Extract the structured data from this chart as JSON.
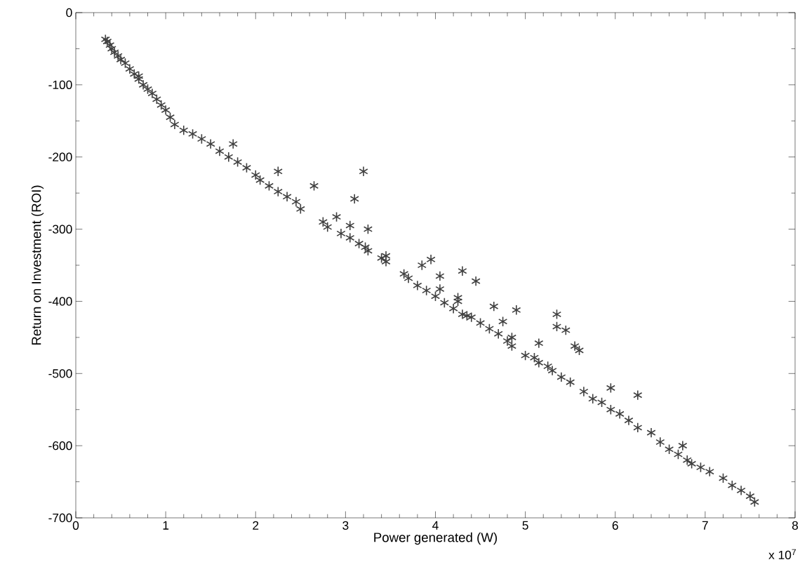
{
  "chart_data": {
    "type": "scatter",
    "xlabel": "Power generated (W)",
    "ylabel": "Return on Investment (ROI)",
    "annotations": [
      "x 10$^{7}$"
    ],
    "xlim": [
      0,
      8
    ],
    "xticks": [
      0,
      1,
      2,
      3,
      4,
      5,
      6,
      7,
      8
    ],
    "ylim": [
      -700,
      0
    ],
    "yticks": [
      -700,
      -600,
      -500,
      -400,
      -300,
      -200,
      -100,
      0
    ],
    "grid": false,
    "marker": "cross",
    "series": [
      {
        "color": "#404040",
        "x": [
          0.33,
          0.35,
          0.38,
          0.4,
          0.43,
          0.47,
          0.5,
          0.55,
          0.6,
          0.65,
          0.7,
          0.75,
          0.8,
          0.85,
          0.9,
          0.95,
          1.0,
          1.05,
          1.1,
          1.2,
          1.3,
          1.4,
          1.5,
          1.6,
          1.7,
          1.8,
          1.9,
          2.0,
          2.05,
          2.15,
          2.25,
          2.35,
          2.45,
          2.5,
          2.75,
          2.8,
          2.95,
          3.05,
          3.15,
          3.25,
          3.4,
          3.45,
          3.65,
          3.7,
          3.8,
          3.9,
          4.0,
          4.1,
          4.2,
          4.3,
          4.4,
          4.5,
          4.6,
          4.7,
          4.8,
          5.0,
          5.1,
          5.15,
          5.25,
          5.3,
          5.4,
          5.5,
          5.65,
          5.75,
          5.85,
          5.95,
          6.05,
          6.15,
          6.25,
          6.4,
          6.5,
          6.6,
          6.7,
          6.8,
          6.85,
          6.95,
          7.05,
          7.2,
          7.3,
          7.4,
          7.5,
          7.55,
          0.7,
          1.75,
          2.25,
          2.65,
          2.9,
          3.05,
          3.1,
          3.2,
          3.25,
          3.22,
          3.45,
          3.85,
          3.95,
          4.05,
          4.05,
          4.25,
          4.3,
          4.45,
          4.65,
          4.75,
          4.9,
          4.85,
          4.85,
          5.15,
          5.35,
          5.35,
          5.45,
          5.55,
          5.6,
          5.95,
          6.25,
          6.75,
          4.25,
          4.35
        ],
        "values": [
          -37,
          -40,
          -45,
          -50,
          -55,
          -60,
          -65,
          -70,
          -78,
          -85,
          -92,
          -100,
          -106,
          -112,
          -120,
          -128,
          -135,
          -145,
          -155,
          -163,
          -168,
          -175,
          -182,
          -192,
          -200,
          -207,
          -215,
          -225,
          -232,
          -240,
          -248,
          -255,
          -262,
          -272,
          -290,
          -297,
          -306,
          -312,
          -320,
          -330,
          -340,
          -345,
          -362,
          -368,
          -378,
          -385,
          -393,
          -402,
          -410,
          -418,
          -422,
          -430,
          -438,
          -445,
          -455,
          -475,
          -478,
          -485,
          -490,
          -496,
          -505,
          -512,
          -525,
          -535,
          -540,
          -550,
          -556,
          -565,
          -575,
          -582,
          -595,
          -605,
          -612,
          -620,
          -625,
          -630,
          -636,
          -645,
          -655,
          -662,
          -670,
          -678,
          -88,
          -182,
          -220,
          -240,
          -283,
          -295,
          -258,
          -220,
          -300,
          -325,
          -337,
          -350,
          -342,
          -365,
          -383,
          -400,
          -358,
          -372,
          -407,
          -428,
          -412,
          -450,
          -462,
          -458,
          -418,
          -435,
          -440,
          -462,
          -468,
          -520,
          -530,
          -600,
          -395,
          -420
        ]
      }
    ]
  }
}
